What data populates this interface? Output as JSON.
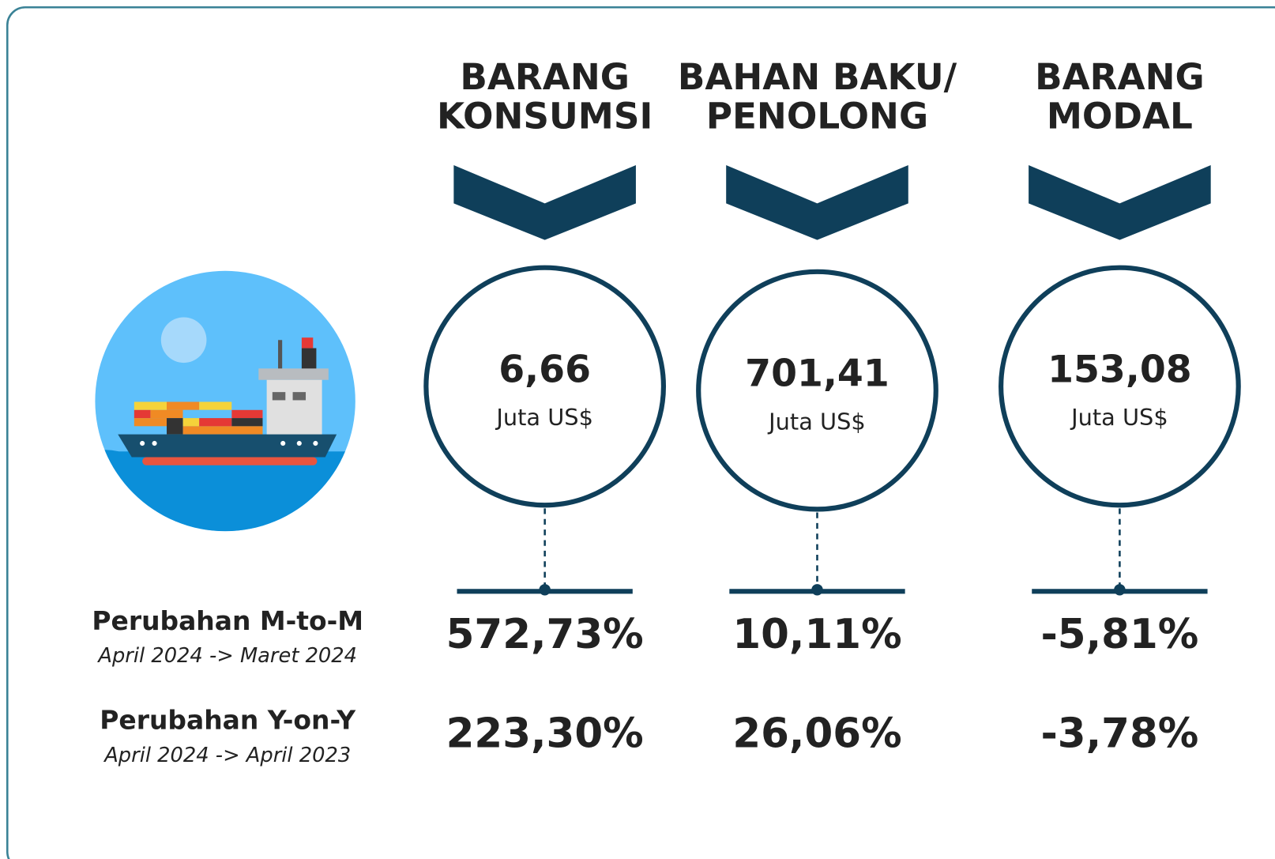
{
  "columns": [
    {
      "title": [
        "BARANG",
        "KONSUMSI"
      ],
      "value": "6,66",
      "unit": "Juta US$",
      "mtm": "572,73%",
      "yoy": "223,30%"
    },
    {
      "title": [
        "BAHAN BAKU/",
        "PENOLONG"
      ],
      "value": "701,41",
      "unit": "Juta US$",
      "mtm": "10,11%",
      "yoy": "26,06%"
    },
    {
      "title": [
        "BARANG",
        "MODAL"
      ],
      "value": "153,08",
      "unit": "Juta US$",
      "mtm": "-5,81%",
      "yoy": "-3,78%"
    }
  ],
  "rows": [
    {
      "label": "Perubahan M-to-M",
      "period": "April 2024 -> Maret 2024"
    },
    {
      "label": "Perubahan Y-on-Y",
      "period": "April 2024 -> April 2023"
    }
  ]
}
